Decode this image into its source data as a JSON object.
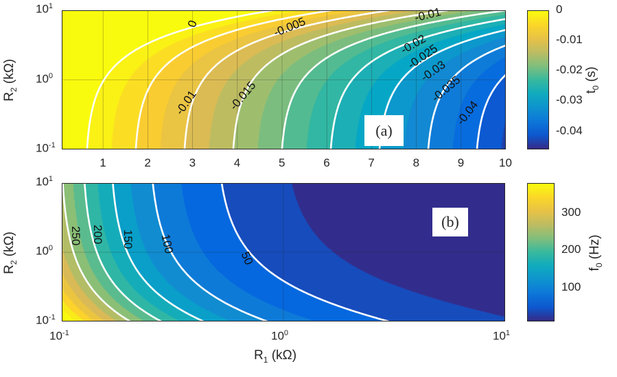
{
  "chart_data": [
    {
      "type": "heatmap",
      "style": "filled-contour",
      "panel_label": "(a)",
      "xlabel": "",
      "ylabel": {
        "main": "R",
        "sub": "2",
        "rest": " (kΩ)"
      },
      "x_scale": "linear",
      "y_scale": "log",
      "xlim": [
        0.1,
        10
      ],
      "ylim": [
        0.1,
        10
      ],
      "x_ticks": [
        "1",
        "2",
        "3",
        "4",
        "5",
        "6",
        "7",
        "8",
        "9",
        "10"
      ],
      "y_ticks": [
        {
          "base": "10",
          "exp": "1"
        },
        {
          "base": "10",
          "exp": "0"
        },
        {
          "base": "10",
          "exp": "-1"
        }
      ],
      "colorbar": {
        "label": {
          "main": "t",
          "sub": "0",
          "rest": " (s)"
        },
        "range": [
          -0.046,
          0
        ],
        "ticks": [
          "0",
          "-0.01",
          "-0.02",
          "-0.03",
          "-0.04"
        ]
      },
      "contour_levels": [
        "0",
        "-0.005",
        "-0.01",
        "-0.015",
        "-0.02",
        "-0.025",
        "-0.03",
        "-0.035",
        "-0.04"
      ],
      "contour_labels": [
        "0",
        "-0.005",
        "-0.01",
        "-0.01",
        "-0.015",
        "-0.02",
        "-0.025",
        "-0.03",
        "-0.035",
        "-0.04"
      ],
      "colormap": "parula",
      "grid": true
    },
    {
      "type": "heatmap",
      "style": "filled-contour",
      "panel_label": "(b)",
      "xlabel": {
        "main": "R",
        "sub": "1",
        "rest": " (kΩ)"
      },
      "ylabel": {
        "main": "R",
        "sub": "2",
        "rest": " (kΩ)"
      },
      "x_scale": "log",
      "y_scale": "log",
      "xlim": [
        0.1,
        10
      ],
      "ylim": [
        0.1,
        10
      ],
      "x_ticks": [
        {
          "base": "10",
          "exp": "-1"
        },
        {
          "base": "10",
          "exp": "0"
        },
        {
          "base": "10",
          "exp": "1"
        }
      ],
      "y_ticks": [
        {
          "base": "10",
          "exp": "1"
        },
        {
          "base": "10",
          "exp": "0"
        },
        {
          "base": "10",
          "exp": "-1"
        }
      ],
      "colorbar": {
        "label": {
          "main": "f",
          "sub": "0",
          "rest": " (Hz)"
        },
        "range": [
          10,
          380
        ],
        "ticks": [
          "300",
          "200",
          "100"
        ]
      },
      "contour_levels": [
        "250",
        "200",
        "150",
        "100",
        "50"
      ],
      "contour_labels": [
        "250",
        "200",
        "150",
        "100",
        "50"
      ],
      "colormap": "parula",
      "grid": true
    }
  ]
}
